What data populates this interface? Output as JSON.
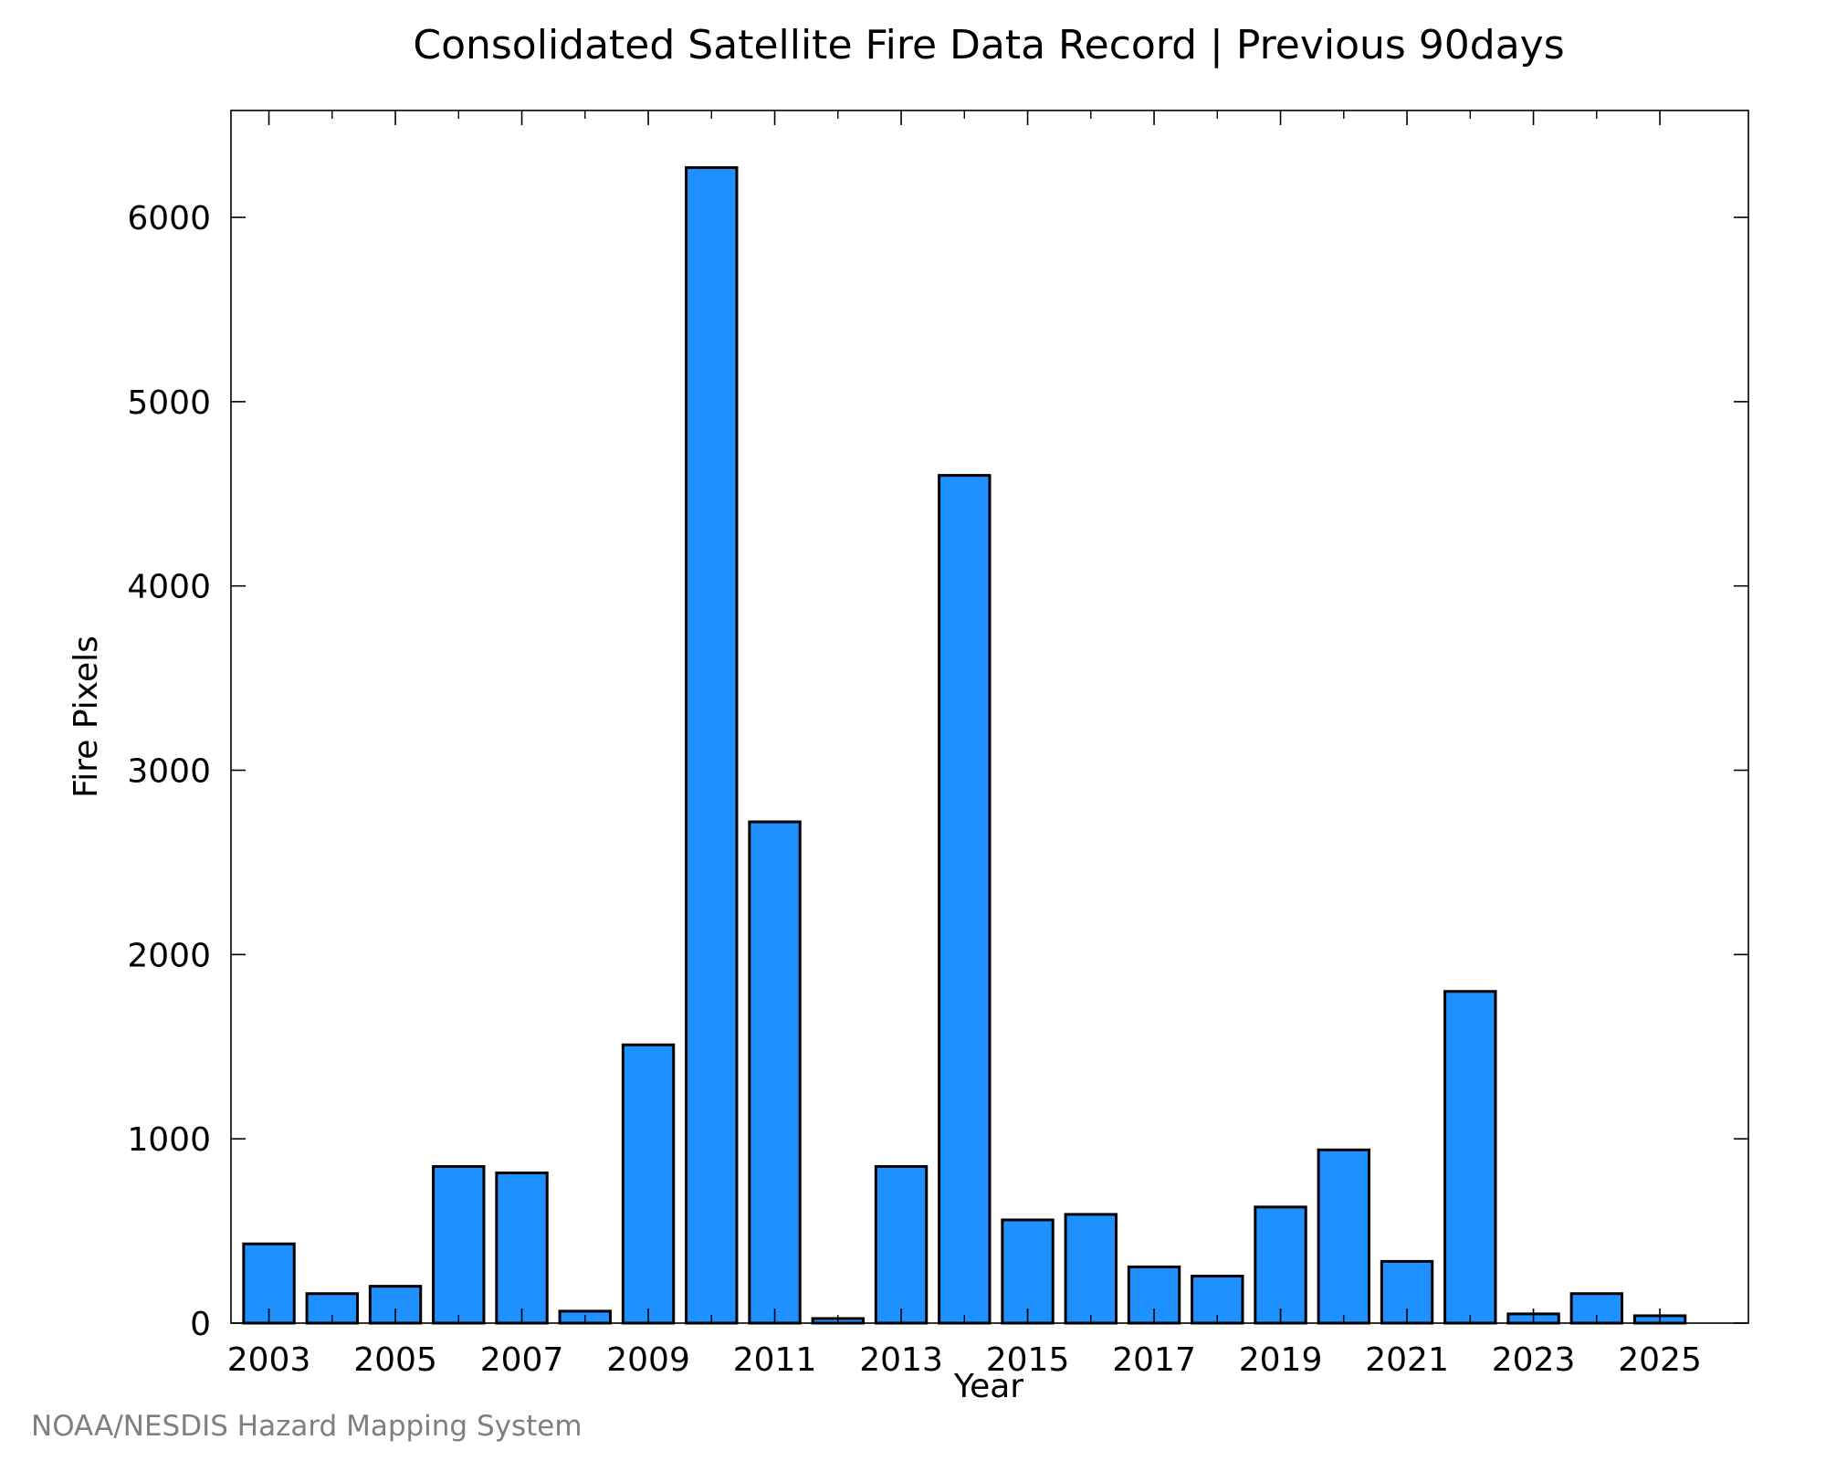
{
  "chart_data": {
    "type": "bar",
    "title": "Consolidated Satellite Fire Data Record | Previous 90days",
    "xlabel": "Year",
    "ylabel": "Fire Pixels",
    "categories": [
      2003,
      2004,
      2005,
      2006,
      2007,
      2008,
      2009,
      2010,
      2011,
      2012,
      2013,
      2014,
      2015,
      2016,
      2017,
      2018,
      2019,
      2020,
      2021,
      2022,
      2023,
      2024,
      2025
    ],
    "values": [
      430,
      160,
      200,
      850,
      815,
      65,
      1510,
      6270,
      2720,
      25,
      850,
      4600,
      560,
      590,
      305,
      255,
      630,
      940,
      335,
      1800,
      50,
      160,
      40
    ],
    "x_ticks": [
      "2003",
      "2005",
      "2007",
      "2009",
      "2011",
      "2013",
      "2015",
      "2017",
      "2019",
      "2021",
      "2023",
      "2025"
    ],
    "y_ticks": [
      "0",
      "1000",
      "2000",
      "3000",
      "4000",
      "5000",
      "6000"
    ],
    "xlim": [
      2002.4,
      2026.4
    ],
    "ylim": [
      0,
      6580
    ],
    "bar_color": "#1e90ff",
    "edge_color": "#000000",
    "grid": false,
    "legend": "none"
  },
  "footer": {
    "credit": "NOAA/NESDIS Hazard Mapping System",
    "credit_color": "#7f7f7f"
  }
}
